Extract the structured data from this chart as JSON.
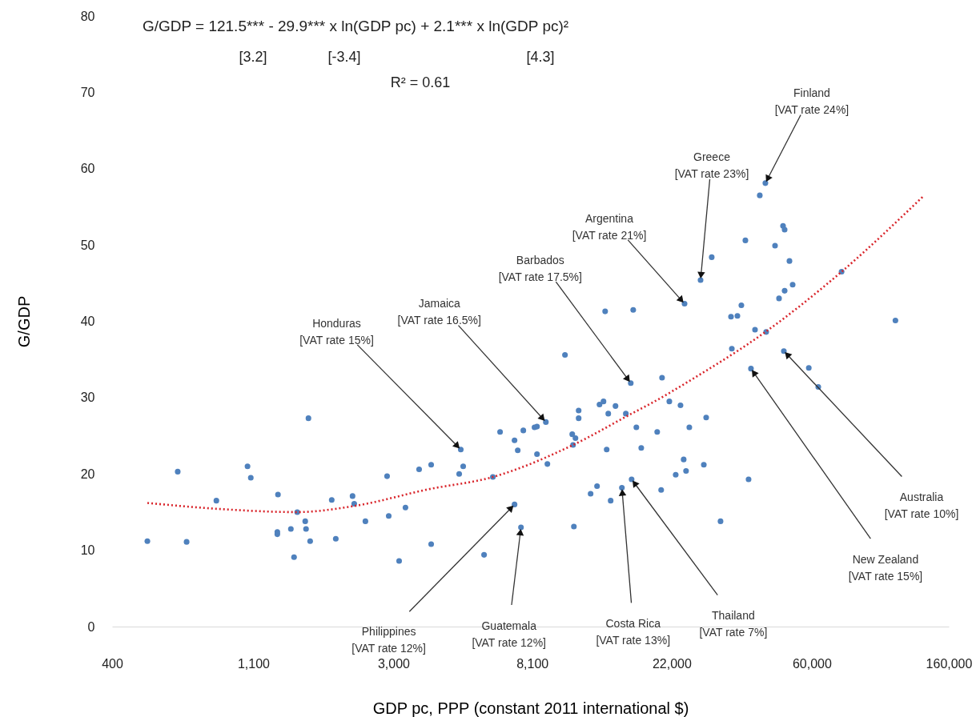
{
  "chart_data": {
    "type": "scatter",
    "xlabel": "GDP pc, PPP (constant 2011 international $)",
    "ylabel": "G/GDP",
    "log": "x",
    "xlim": [
      400,
      160000
    ],
    "xticks": [
      {
        "value": 400,
        "label": "400"
      },
      {
        "value": 1100,
        "label": "1,100"
      },
      {
        "value": 3000,
        "label": "3,000"
      },
      {
        "value": 8100,
        "label": "8,100"
      },
      {
        "value": 22000,
        "label": "22,000"
      },
      {
        "value": 60000,
        "label": "60,000"
      },
      {
        "value": 160000,
        "label": "160,000"
      }
    ],
    "ylim": [
      0,
      80
    ],
    "yticks": [
      0,
      10,
      20,
      30,
      40,
      50,
      60,
      70,
      80
    ],
    "grid": false,
    "series": [
      {
        "color": "#4f81bd",
        "marker": "circle",
        "x": [
          515,
          640,
          682,
          844,
          1055,
          1080,
          1312,
          1506,
          1306,
          1306,
          1439,
          1595,
          1604,
          1472,
          1652,
          1632,
          1928,
          2238,
          2265,
          1985,
          2454,
          2866,
          2900,
          3124,
          3270,
          3605,
          3930,
          3930,
          4858,
          4943,
          4803,
          5740,
          6113,
          6437,
          7139,
          7305,
          7603,
          8237,
          8385,
          8934,
          8385,
          9033,
          7139,
          7476,
          10245,
          11299,
          11299,
          10793,
          11045,
          10856,
          10920,
          13120,
          13500,
          14710,
          13970,
          15840,
          17080,
          13810,
          17690,
          13660,
          16700,
          16410,
          12890,
          12310,
          14210,
          15400,
          16510,
          19830,
          20530,
          21630,
          23430,
          24960,
          23970,
          22640,
          24380,
          20400,
          27690,
          28160,
          31210,
          24120,
          27050,
          29300,
          37290,
          46110,
          48830,
          49390,
          51130,
          52310,
          49390,
          47450,
          36230,
          33640,
          35220,
          39950,
          43280,
          33840,
          49110,
          38810,
          58720,
          62850,
          74270,
          109200,
          43030,
          41340,
          38150
        ],
        "values": [
          11.2,
          20.3,
          11.1,
          16.5,
          21.0,
          19.5,
          17.3,
          15.0,
          12.4,
          12.1,
          12.8,
          13.8,
          12.8,
          9.1,
          11.2,
          27.3,
          16.6,
          17.1,
          16.1,
          11.5,
          13.8,
          19.7,
          14.5,
          8.6,
          15.6,
          20.6,
          21.2,
          10.8,
          23.2,
          21.0,
          20.0,
          9.4,
          19.6,
          25.5,
          24.4,
          23.1,
          25.7,
          26.1,
          26.2,
          26.8,
          22.6,
          21.3,
          16.0,
          13.0,
          35.6,
          28.3,
          27.3,
          25.2,
          24.7,
          23.8,
          13.1,
          29.1,
          29.5,
          28.9,
          27.9,
          27.9,
          26.1,
          23.2,
          23.4,
          41.3,
          41.5,
          31.9,
          18.4,
          17.4,
          16.5,
          18.2,
          19.3,
          25.5,
          32.6,
          29.5,
          29.0,
          26.1,
          21.9,
          19.9,
          20.4,
          17.9,
          21.2,
          27.4,
          13.8,
          42.3,
          45.4,
          48.4,
          50.6,
          49.9,
          52.5,
          52.0,
          47.9,
          44.8,
          44.0,
          43.0,
          42.1,
          40.6,
          40.7,
          38.9,
          38.6,
          36.4,
          36.1,
          33.8,
          33.9,
          31.4,
          46.5,
          40.1,
          58.1,
          56.5,
          19.3
        ]
      },
      {
        "type": "line",
        "color": "#d9262c",
        "line_style": "dotted",
        "x": [
          515,
          868,
          1506,
          2265,
          3864,
          6113,
          10856,
          16510,
          19270,
          25680,
          43030,
          74270,
          133400
        ],
        "values": [
          16.2,
          15.4,
          15.0,
          15.8,
          18.0,
          19.6,
          23.8,
          27.9,
          29.4,
          32.5,
          38.6,
          46.5,
          56.4
        ]
      }
    ],
    "annotations": [
      "G/GDP = 121.5*** - 29.9*** x ln(GDP pc) + 2.1*** x ln(GDP pc)²",
      "[3.2]",
      "[-3.4]",
      "[4.3]",
      "R² = 0.61",
      {
        "text": "Finland\n[VAT rate 24%]",
        "x": 43030,
        "y": 58.1
      },
      {
        "text": "Greece\n[VAT rate 23%]",
        "x": 27050,
        "y": 45.4
      },
      {
        "text": "Argentina\n[VAT rate 21%]",
        "x": 24120,
        "y": 42.3
      },
      {
        "text": "Barbados\n[VAT rate 17.5%]",
        "x": 16410,
        "y": 31.9
      },
      {
        "text": "Jamaica\n[VAT rate 16.5%]",
        "x": 8934,
        "y": 26.8
      },
      {
        "text": "Honduras\n[VAT rate 15%]",
        "x": 4858,
        "y": 23.2
      },
      {
        "text": "Philippines\n[VAT rate 12%]",
        "x": 7139,
        "y": 16.0
      },
      {
        "text": "Guatemala\n[VAT rate 12%]",
        "x": 7476,
        "y": 13.0
      },
      {
        "text": "Costa Rica\n[VAT rate 13%]",
        "x": 15400,
        "y": 18.2
      },
      {
        "text": "Thailand\n[VAT rate 7%]",
        "x": 16510,
        "y": 19.3
      },
      {
        "text": "New Zealand\n[VAT rate 15%]",
        "x": 38810,
        "y": 33.8
      },
      {
        "text": "Australia\n[VAT rate 10%]",
        "x": 49110,
        "y": 36.1
      }
    ]
  }
}
